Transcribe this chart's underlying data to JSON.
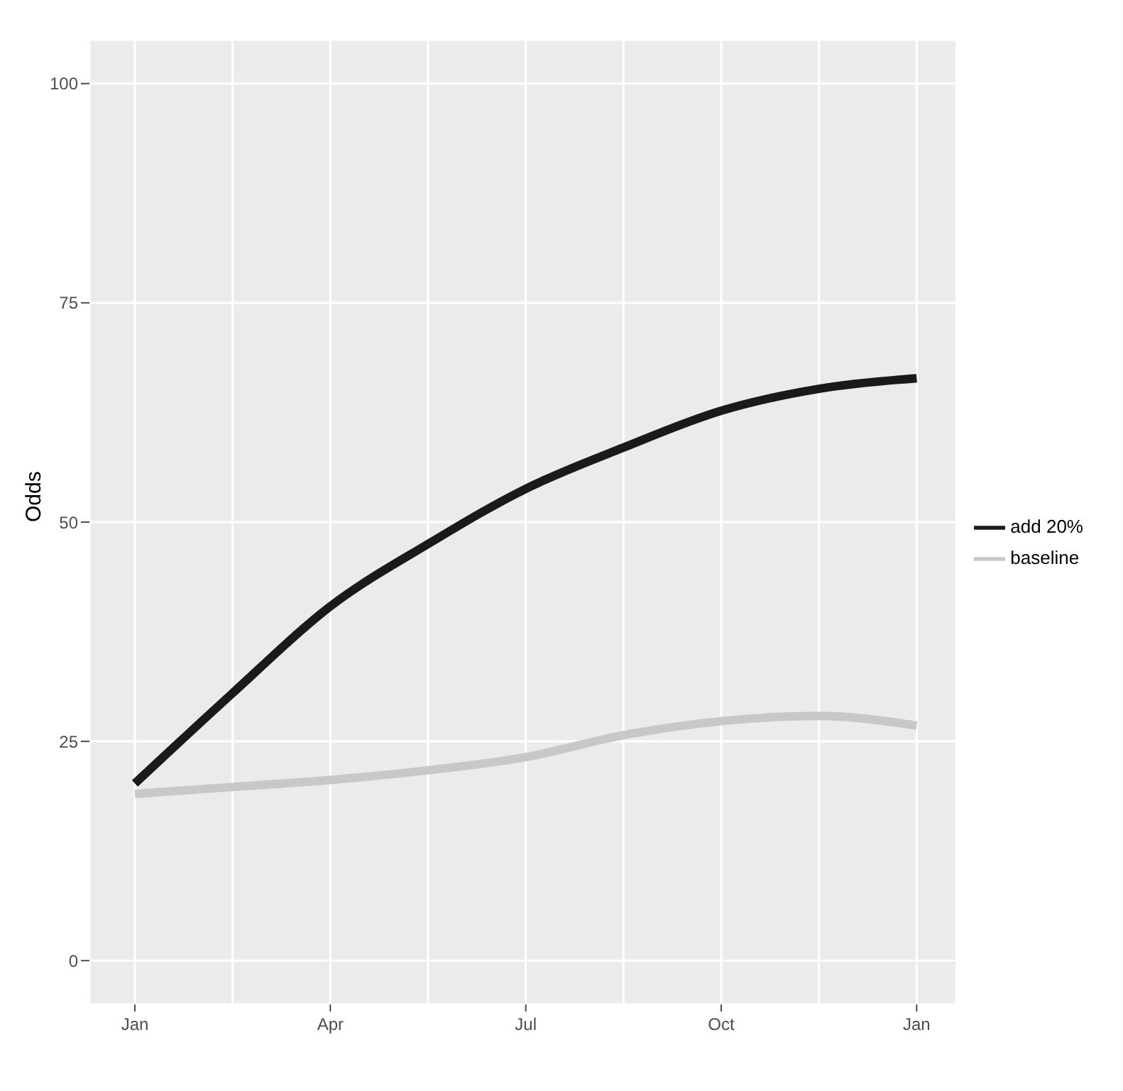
{
  "chart_data": {
    "type": "line",
    "ylabel": "Odds",
    "grid": true,
    "legend": "right",
    "categories": [
      "Jan",
      null,
      "Apr",
      null,
      "Jul",
      null,
      "Oct",
      null,
      "Jan"
    ],
    "ylim": [
      -5,
      105
    ],
    "yticks": [
      0,
      25,
      50,
      75,
      100
    ],
    "series": [
      {
        "name": "baseline",
        "color": "#c8c8c8",
        "values": [
          19.0,
          19.8,
          20.6,
          21.7,
          23.2,
          25.7,
          27.3,
          27.9,
          26.8
        ]
      },
      {
        "name": "add 20%",
        "color": "#1a1a1a",
        "values": [
          20.2,
          30.5,
          40.4,
          47.5,
          53.8,
          58.5,
          62.7,
          65.2,
          66.4
        ]
      }
    ]
  }
}
